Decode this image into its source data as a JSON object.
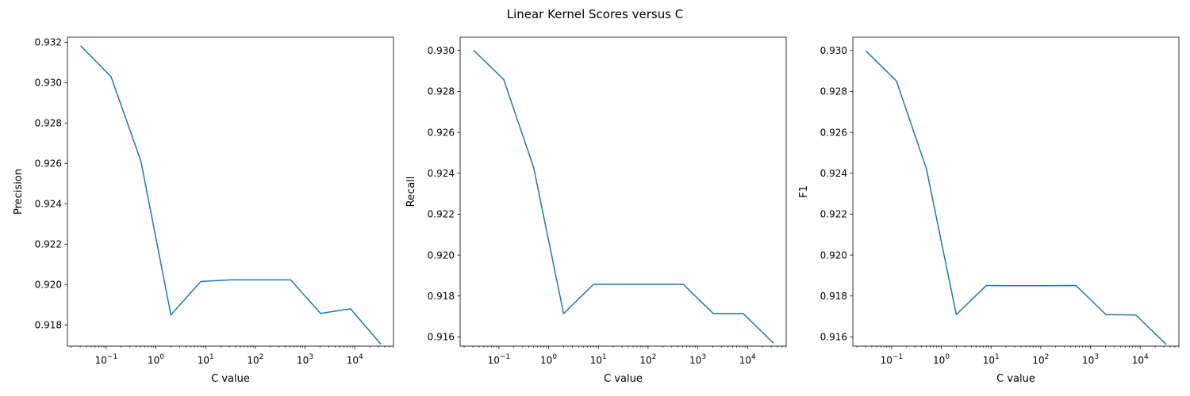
{
  "figure": {
    "title": "Linear Kernel Scores versus C"
  },
  "chart_data": [
    {
      "type": "line",
      "title": "",
      "xlabel": "C value",
      "ylabel": "Precision",
      "xscale": "log",
      "xlim": [
        0.0166,
        60000
      ],
      "ylim": [
        0.91695,
        0.93225
      ],
      "x_ticks": [
        {
          "base": "10",
          "exp": "−1"
        },
        {
          "base": "10",
          "exp": "0"
        },
        {
          "base": "10",
          "exp": "1"
        },
        {
          "base": "10",
          "exp": "2"
        },
        {
          "base": "10",
          "exp": "3"
        },
        {
          "base": "10",
          "exp": "4"
        }
      ],
      "y_ticks": [
        "0.918",
        "0.920",
        "0.922",
        "0.924",
        "0.926",
        "0.928",
        "0.930",
        "0.932"
      ],
      "grid": false,
      "color": "#1f77b4",
      "series": [
        {
          "x": [
            0.03125,
            0.125,
            0.5,
            2,
            8,
            32,
            128,
            512,
            2048,
            8192,
            32768
          ],
          "y": [
            0.9318,
            0.9303,
            0.9261,
            0.9185,
            0.92015,
            0.92023,
            0.92023,
            0.92023,
            0.91857,
            0.9188,
            0.91707
          ]
        }
      ]
    },
    {
      "type": "line",
      "title": "",
      "xlabel": "C value",
      "ylabel": "Recall",
      "xscale": "log",
      "xlim": [
        0.0166,
        60000
      ],
      "ylim": [
        0.91555,
        0.93065
      ],
      "x_ticks": [
        {
          "base": "10",
          "exp": "−1"
        },
        {
          "base": "10",
          "exp": "0"
        },
        {
          "base": "10",
          "exp": "1"
        },
        {
          "base": "10",
          "exp": "2"
        },
        {
          "base": "10",
          "exp": "3"
        },
        {
          "base": "10",
          "exp": "4"
        }
      ],
      "y_ticks": [
        "0.916",
        "0.918",
        "0.920",
        "0.922",
        "0.924",
        "0.926",
        "0.928",
        "0.930"
      ],
      "grid": false,
      "color": "#1f77b4",
      "series": [
        {
          "x": [
            0.03125,
            0.125,
            0.5,
            2,
            8,
            32,
            128,
            512,
            2048,
            8192,
            32768
          ],
          "y": [
            0.93,
            0.92858,
            0.92428,
            0.91714,
            0.91857,
            0.91857,
            0.91857,
            0.91857,
            0.91714,
            0.91714,
            0.91571
          ]
        }
      ]
    },
    {
      "type": "line",
      "title": "",
      "xlabel": "C value",
      "ylabel": "F1",
      "xscale": "log",
      "xlim": [
        0.0166,
        60000
      ],
      "ylim": [
        0.91555,
        0.93065
      ],
      "x_ticks": [
        {
          "base": "10",
          "exp": "−1"
        },
        {
          "base": "10",
          "exp": "0"
        },
        {
          "base": "10",
          "exp": "1"
        },
        {
          "base": "10",
          "exp": "2"
        },
        {
          "base": "10",
          "exp": "3"
        },
        {
          "base": "10",
          "exp": "4"
        }
      ],
      "y_ticks": [
        "0.916",
        "0.918",
        "0.920",
        "0.922",
        "0.924",
        "0.926",
        "0.928",
        "0.930"
      ],
      "grid": false,
      "color": "#1f77b4",
      "series": [
        {
          "x": [
            0.03125,
            0.125,
            0.5,
            2,
            8,
            32,
            128,
            512,
            2048,
            8192,
            32768
          ],
          "y": [
            0.92995,
            0.92851,
            0.92423,
            0.91709,
            0.91851,
            0.9185,
            0.9185,
            0.91851,
            0.91709,
            0.91707,
            0.91565
          ]
        }
      ]
    }
  ]
}
